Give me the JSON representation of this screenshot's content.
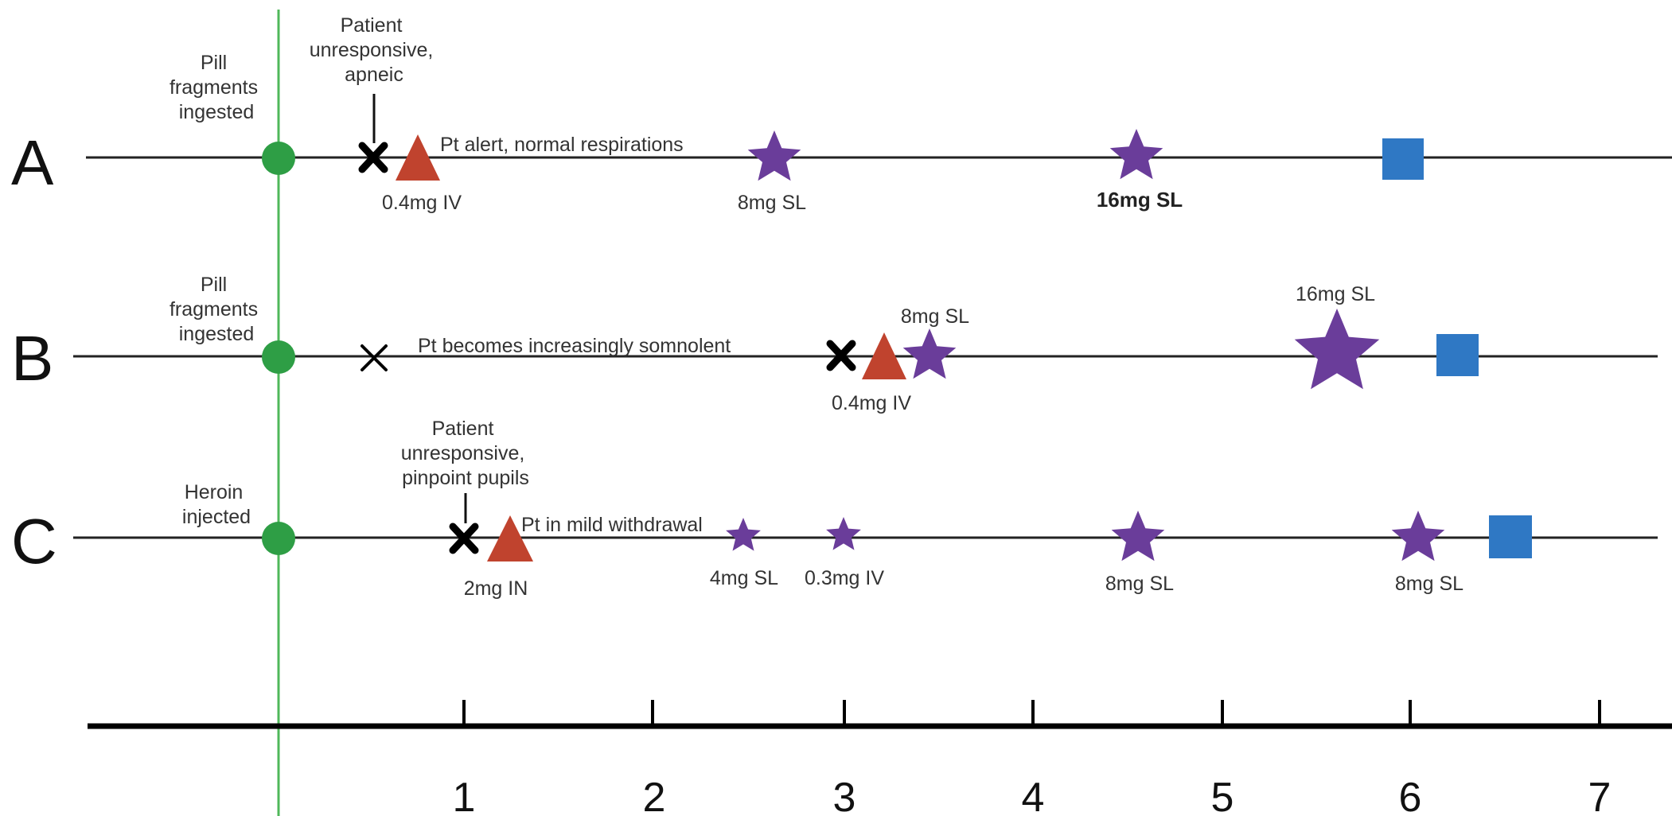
{
  "colors": {
    "ingestion": "#2e9e45",
    "naloxone": "#c0432e",
    "buprenorphine": "#6a3d9a",
    "discharge": "#2f78c4",
    "opioid_effect": "#000000",
    "zero_line": "#4fb85a"
  },
  "axis": {
    "ticks": [
      "1",
      "2",
      "3",
      "4",
      "5",
      "6",
      "7"
    ]
  },
  "rows": {
    "A": {
      "letter": "A",
      "start_label": [
        "Pill",
        "fragments",
        "ingested"
      ],
      "event_label": [
        "Patient",
        "unresponsive,",
        "apneic"
      ],
      "x_mark_label": "0.4mg IV",
      "note": "Pt alert, normal respirations",
      "star1_label": "8mg SL",
      "star2_label": "16mg SL"
    },
    "B": {
      "letter": "B",
      "start_label": [
        "Pill",
        "fragments",
        "ingested"
      ],
      "note": "Pt becomes increasingly somnolent",
      "naloxone_label": "0.4mg IV",
      "star1_label": "8mg SL",
      "star2_label": "16mg SL"
    },
    "C": {
      "letter": "C",
      "start_label": [
        "Heroin",
        "injected"
      ],
      "event_label": [
        "Patient",
        "unresponsive,",
        "pinpoint pupils"
      ],
      "naloxone_label": "2mg IN",
      "note": "Pt in mild withdrawal",
      "star1_label": "4mg SL",
      "star2_label": "0.3mg IV",
      "star3_label": "8mg SL",
      "star4_label": "8mg SL"
    }
  }
}
